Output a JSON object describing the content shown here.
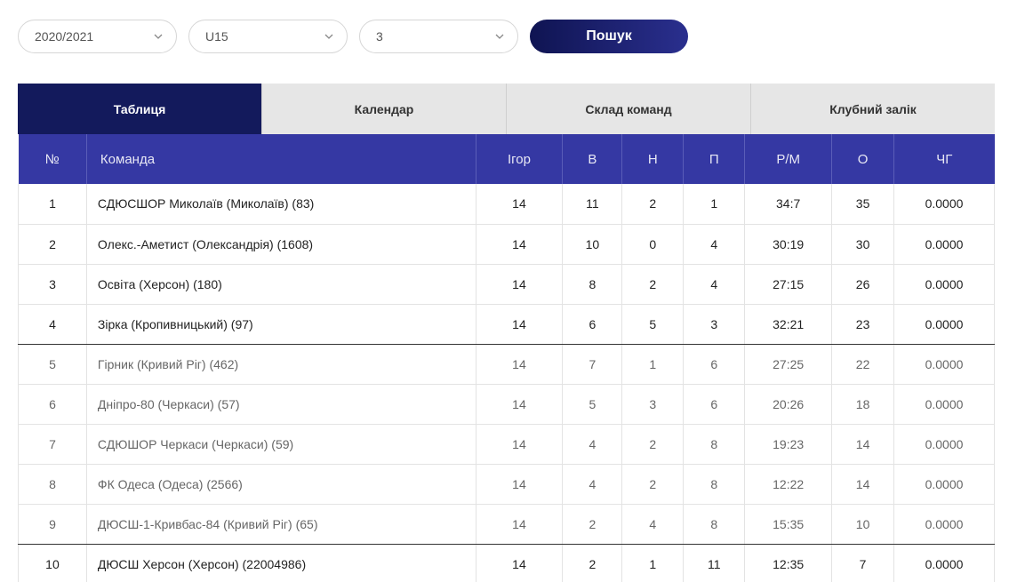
{
  "filters": {
    "season": "2020/2021",
    "age_group": "U15",
    "round": "3",
    "search_label": "Пошук"
  },
  "tabs": [
    {
      "label": "Таблиця",
      "active": true
    },
    {
      "label": "Календар",
      "active": false
    },
    {
      "label": "Склад команд",
      "active": false
    },
    {
      "label": "Клубний залік",
      "active": false
    }
  ],
  "table": {
    "headers": [
      "№",
      "Команда",
      "Ігор",
      "В",
      "Н",
      "П",
      "Р/М",
      "О",
      "ЧГ"
    ],
    "rows": [
      {
        "pos": "1",
        "team": "СДЮСШОР Миколаїв (Миколаїв) (83)",
        "games": "14",
        "w": "11",
        "d": "2",
        "l": "1",
        "gd": "34:7",
        "pts": "35",
        "chg": "0.0000"
      },
      {
        "pos": "2",
        "team": "Олекс.-Аметист (Олександрія) (1608)",
        "games": "14",
        "w": "10",
        "d": "0",
        "l": "4",
        "gd": "30:19",
        "pts": "30",
        "chg": "0.0000"
      },
      {
        "pos": "3",
        "team": "Освіта (Херсон) (180)",
        "games": "14",
        "w": "8",
        "d": "2",
        "l": "4",
        "gd": "27:15",
        "pts": "26",
        "chg": "0.0000"
      },
      {
        "pos": "4",
        "team": "Зірка (Кропивницький) (97)",
        "games": "14",
        "w": "6",
        "d": "5",
        "l": "3",
        "gd": "32:21",
        "pts": "23",
        "chg": "0.0000"
      },
      {
        "pos": "5",
        "team": "Гірник (Кривий Ріг) (462)",
        "games": "14",
        "w": "7",
        "d": "1",
        "l": "6",
        "gd": "27:25",
        "pts": "22",
        "chg": "0.0000"
      },
      {
        "pos": "6",
        "team": "Дніпро-80 (Черкаси) (57)",
        "games": "14",
        "w": "5",
        "d": "3",
        "l": "6",
        "gd": "20:26",
        "pts": "18",
        "chg": "0.0000"
      },
      {
        "pos": "7",
        "team": "СДЮШОР Черкаси (Черкаси) (59)",
        "games": "14",
        "w": "4",
        "d": "2",
        "l": "8",
        "gd": "19:23",
        "pts": "14",
        "chg": "0.0000"
      },
      {
        "pos": "8",
        "team": "ФК Одеса (Одеса) (2566)",
        "games": "14",
        "w": "4",
        "d": "2",
        "l": "8",
        "gd": "12:22",
        "pts": "14",
        "chg": "0.0000"
      },
      {
        "pos": "9",
        "team": "ДЮСШ-1-Кривбас-84 (Кривий Ріг) (65)",
        "games": "14",
        "w": "2",
        "d": "4",
        "l": "8",
        "gd": "15:35",
        "pts": "10",
        "chg": "0.0000"
      },
      {
        "pos": "10",
        "team": "ДЮСШ Херсон (Херсон) (22004986)",
        "games": "14",
        "w": "2",
        "d": "1",
        "l": "11",
        "gd": "12:35",
        "pts": "7",
        "chg": "0.0000"
      }
    ]
  },
  "colors": {
    "header_bg": "#3538a3",
    "active_tab_bg": "#131a5c",
    "button_gradient_start": "#0f1452",
    "button_gradient_end": "#2a2f8e"
  },
  "icons": {
    "dropdown": "chevron-down-icon"
  }
}
